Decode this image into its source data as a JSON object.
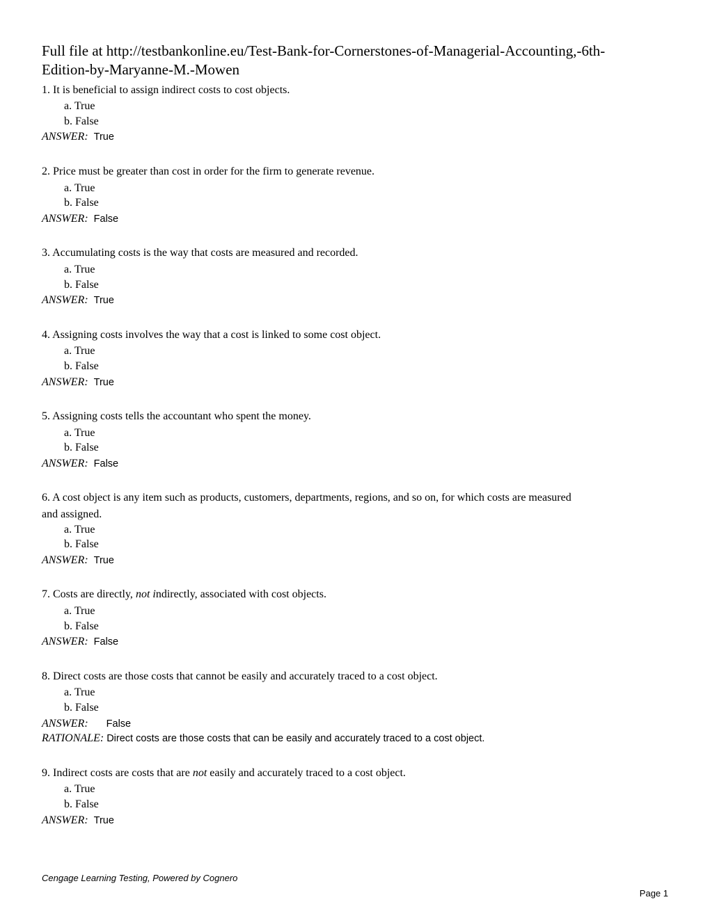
{
  "header": {
    "line1": "Full file at http://testbankonline.eu/Test-Bank-for-Cornerstones-of-Managerial-Accounting,-6th-",
    "line2": "Edition-by-Maryanne-M.-Mowen"
  },
  "questions": [
    {
      "number": "1.",
      "text": "It is beneficial to assign indirect costs to cost objects.",
      "option_a": "a.",
      "option_a_text": "True",
      "option_b": "b.",
      "option_b_text": "False",
      "answer_label": "ANSWER:",
      "answer_value": "True"
    },
    {
      "number": "2.",
      "text": "Price must be greater than cost in order for the firm to generate revenue.",
      "option_a": "a.",
      "option_a_text": "True",
      "option_b": "b.",
      "option_b_text": "False",
      "answer_label": "ANSWER:",
      "answer_value": "False"
    },
    {
      "number": "3.",
      "text": "Accumulating costs is the way that costs are measured and recorded.",
      "option_a": "a.",
      "option_a_text": "True",
      "option_b": "b.",
      "option_b_text": "False",
      "answer_label": "ANSWER:",
      "answer_value": "True"
    },
    {
      "number": "4.",
      "text": "Assigning costs involves the way that a cost is linked to some cost object.",
      "option_a": "a.",
      "option_a_text": "True",
      "option_b": "b.",
      "option_b_text": "False",
      "answer_label": "ANSWER:",
      "answer_value": "True"
    },
    {
      "number": "5.",
      "text": "Assigning costs tells the accountant who spent the money.",
      "option_a": "a.",
      "option_a_text": "True",
      "option_b": "b.",
      "option_b_text": "False",
      "answer_label": "ANSWER:",
      "answer_value": "False"
    },
    {
      "number": "6.",
      "text_line1": "A cost object is any item such as products, customers, departments, regions, and so on, for which costs are measured",
      "text_line2": "and assigned.",
      "option_a": "a.",
      "option_a_text": "True",
      "option_b": "b.",
      "option_b_text": "False",
      "answer_label": "ANSWER:",
      "answer_value": "True"
    },
    {
      "number": "7.",
      "text_before": "Costs are directly, ",
      "text_italic": "not i",
      "text_after": "ndirectly, associated with cost objects.",
      "option_a": "a.",
      "option_a_text": "True",
      "option_b": "b.",
      "option_b_text": "False",
      "answer_label": "ANSWER:",
      "answer_value": "False"
    },
    {
      "number": "8.",
      "text": "Direct costs are those costs that cannot be easily and accurately traced to a cost object.",
      "option_a": "a.",
      "option_a_text": "True",
      "option_b": "b.",
      "option_b_text": "False",
      "answer_label": "ANSWER:",
      "answer_value": "False",
      "rationale_label": "RATIONALE:",
      "rationale_text": "Direct costs are those costs that can be easily and accurately traced to a cost object."
    },
    {
      "number": "9.",
      "text_before": "Indirect costs are costs that are ",
      "text_italic": "not",
      "text_after": " easily and accurately traced to a cost object.",
      "option_a": "a.",
      "option_a_text": "True",
      "option_b": "b.",
      "option_b_text": "False",
      "answer_label": "ANSWER:",
      "answer_value": "True"
    }
  ],
  "footer": {
    "left": "Cengage Learning Testing, Powered by Cognero",
    "right": "Page 1"
  }
}
